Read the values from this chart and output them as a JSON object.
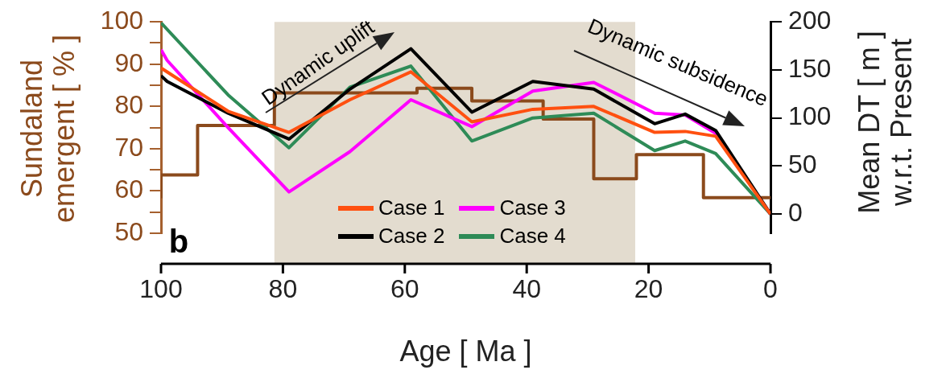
{
  "chart_data": {
    "type": "line",
    "xlabel": "Age [ Ma ]",
    "ylabel": "Sundaland emergent [ % ]",
    "y2label": "Mean DT [ m ] w.r.t. Present",
    "xlim": [
      100,
      0
    ],
    "xticks": [
      100,
      80,
      60,
      40,
      20,
      0
    ],
    "ylim": [
      50,
      100
    ],
    "yticks": [
      50,
      {
        "value": 55,
        "label": null
      },
      60,
      {
        "value": 65,
        "label": null
      },
      70,
      {
        "value": 75,
        "label": null
      },
      80,
      {
        "value": 85,
        "label": null
      },
      90,
      {
        "value": 95,
        "label": null
      },
      100
    ],
    "y2lim": [
      -20,
      200
    ],
    "y2ticks": [
      0,
      50,
      100,
      150,
      200
    ],
    "legend": "bottom",
    "marker": "none",
    "bands": [
      {
        "axis": "x",
        "from": 81.4,
        "to": 22.2,
        "color": "#e3dccf"
      }
    ],
    "annotations": [
      "b",
      "Dynamic uplift",
      "Dynamic subsidence"
    ],
    "series": [
      {
        "type": "step",
        "color": "#8b4a1c",
        "x": [
          100,
          94,
          81.4,
          58,
          49,
          37.3,
          29,
          22,
          11,
          2,
          0
        ],
        "values": [
          58.3,
          63.8,
          75.5,
          83.2,
          84.3,
          81.3,
          77,
          62.9,
          68.6,
          58.4,
          58.4
        ]
      },
      {
        "name": "Case 1",
        "color": "#ff5010",
        "axis": "y2",
        "x": [
          100,
          89,
          79,
          69,
          59,
          49,
          39,
          29,
          19,
          14,
          9,
          0
        ],
        "values": [
          152,
          107,
          85,
          119,
          148,
          96,
          109,
          112,
          85,
          86,
          81,
          0
        ]
      },
      {
        "name": "Case 2",
        "color": "#000000",
        "axis": "y2",
        "x": [
          100,
          99,
          89,
          79,
          69,
          59,
          49,
          39,
          29,
          19,
          14,
          9,
          0
        ],
        "values": [
          144,
          138,
          105,
          78,
          130,
          172,
          106,
          138,
          130,
          94,
          104,
          87,
          0
        ]
      },
      {
        "name": "Case 3",
        "color": "#ff00ff",
        "axis": "y2",
        "x": [
          100,
          99,
          89,
          79,
          69,
          59,
          49,
          39,
          29,
          19,
          14,
          9,
          0
        ],
        "values": [
          171,
          160,
          90,
          23,
          65,
          119,
          91,
          128,
          137,
          105,
          103,
          84,
          0
        ]
      },
      {
        "name": "Case 4",
        "color": "#2e8b57",
        "axis": "y2",
        "x": [
          100,
          89,
          79,
          69,
          59,
          49,
          39,
          29,
          19,
          14,
          9,
          0
        ],
        "values": [
          199,
          124,
          69,
          132,
          154,
          76,
          100,
          105,
          66,
          76,
          63,
          0
        ]
      }
    ]
  }
}
